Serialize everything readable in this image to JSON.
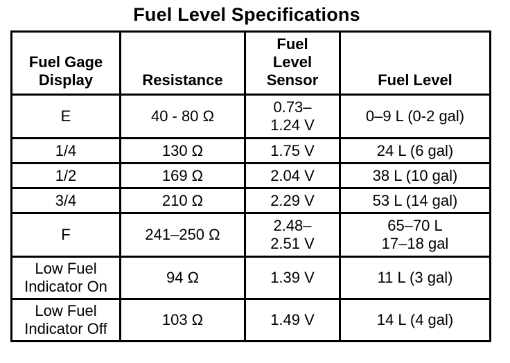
{
  "title": "Fuel Level Specifications",
  "table": {
    "headers": [
      "Fuel Gage\nDisplay",
      "Resistance",
      "Fuel\nLevel\nSensor",
      "Fuel Level"
    ],
    "rows": [
      [
        "E",
        "40 - 80 Ω",
        "0.73–\n1.24 V",
        "0–9 L (0-2 gal)"
      ],
      [
        "1/4",
        "130 Ω",
        "1.75 V",
        "24 L (6 gal)"
      ],
      [
        "1/2",
        "169 Ω",
        "2.04 V",
        "38 L (10 gal)"
      ],
      [
        "3/4",
        "210 Ω",
        "2.29 V",
        "53 L (14 gal)"
      ],
      [
        "F",
        "241–250 Ω",
        "2.48–\n2.51 V",
        "65–70 L\n17–18 gal"
      ],
      [
        "Low Fuel\nIndicator On",
        "94 Ω",
        "1.39 V",
        "11 L (3 gal)"
      ],
      [
        "Low Fuel\nIndicator Off",
        "103 Ω",
        "1.49 V",
        "14 L (4 gal)"
      ]
    ]
  }
}
